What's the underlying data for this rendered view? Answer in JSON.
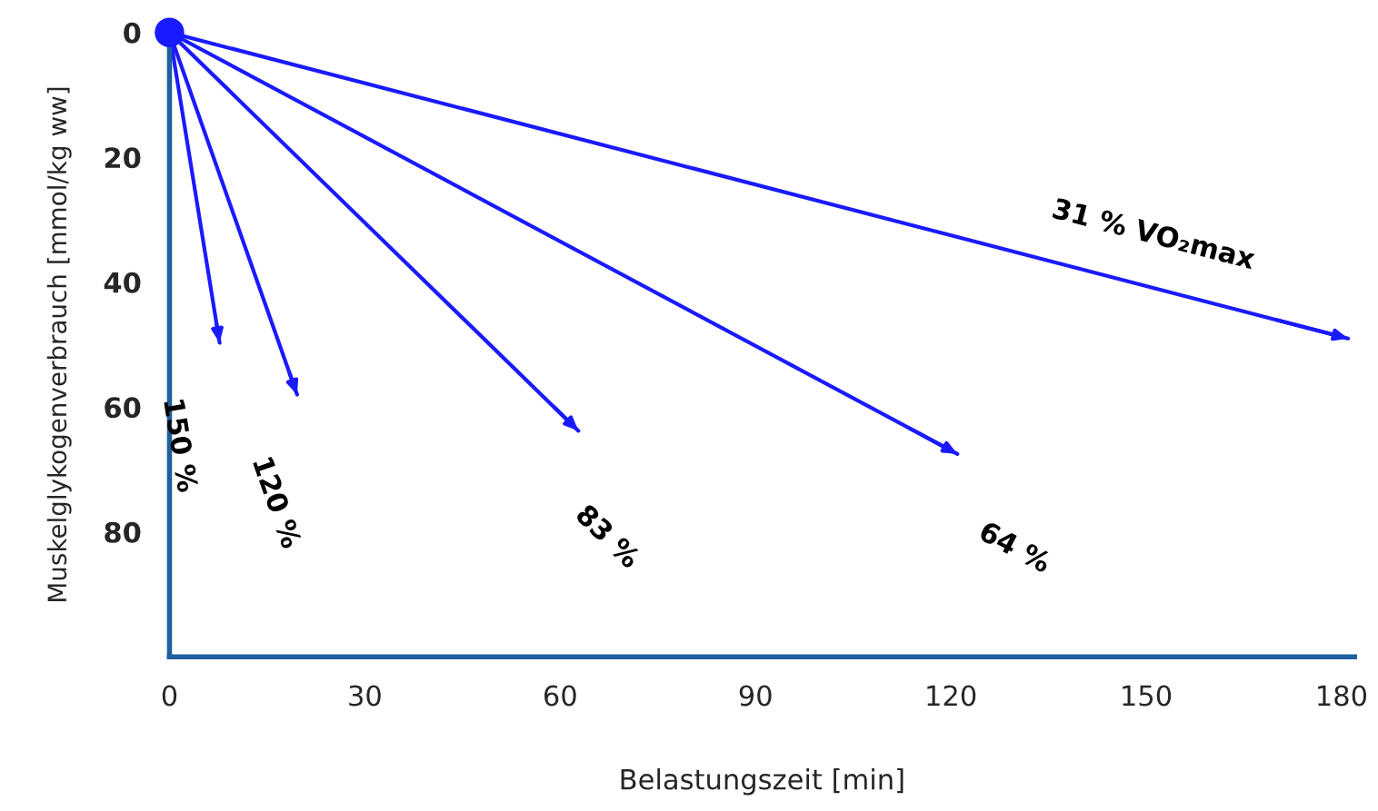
{
  "chart_data": {
    "type": "line",
    "xlabel": "Belastungszeit [min]",
    "ylabel": "Muskelglykogenverbrauch [mmol/kg ww]",
    "xlim": [
      0,
      182
    ],
    "ylim": [
      100,
      0
    ],
    "xticks": [
      0,
      30,
      60,
      90,
      120,
      150,
      180
    ],
    "yticks": [
      0,
      20,
      40,
      60,
      80
    ],
    "grid": false,
    "legend": false,
    "marker": "none",
    "line_style": "solid",
    "series": [
      {
        "name": "31 % VO₂max",
        "color": "#1a1aff",
        "x": [
          0,
          181
        ],
        "values": [
          0,
          49
        ]
      },
      {
        "name": "64 %",
        "color": "#1a1aff",
        "x": [
          0,
          121
        ],
        "values": [
          0,
          67.5
        ]
      },
      {
        "name": "83 %",
        "color": "#1a1aff",
        "x": [
          0,
          62.8
        ],
        "values": [
          0,
          63.8
        ]
      },
      {
        "name": "120 %",
        "color": "#1a1aff",
        "x": [
          0,
          19.6
        ],
        "values": [
          0,
          58
        ]
      },
      {
        "name": "150 %",
        "color": "#1a1aff",
        "x": [
          0,
          7.7
        ],
        "values": [
          0,
          49.7
        ]
      },
      {
        "type": "scatter",
        "color": "#1a1aff",
        "x": [
          0
        ],
        "values": [
          0
        ],
        "marker": "circle"
      }
    ]
  }
}
